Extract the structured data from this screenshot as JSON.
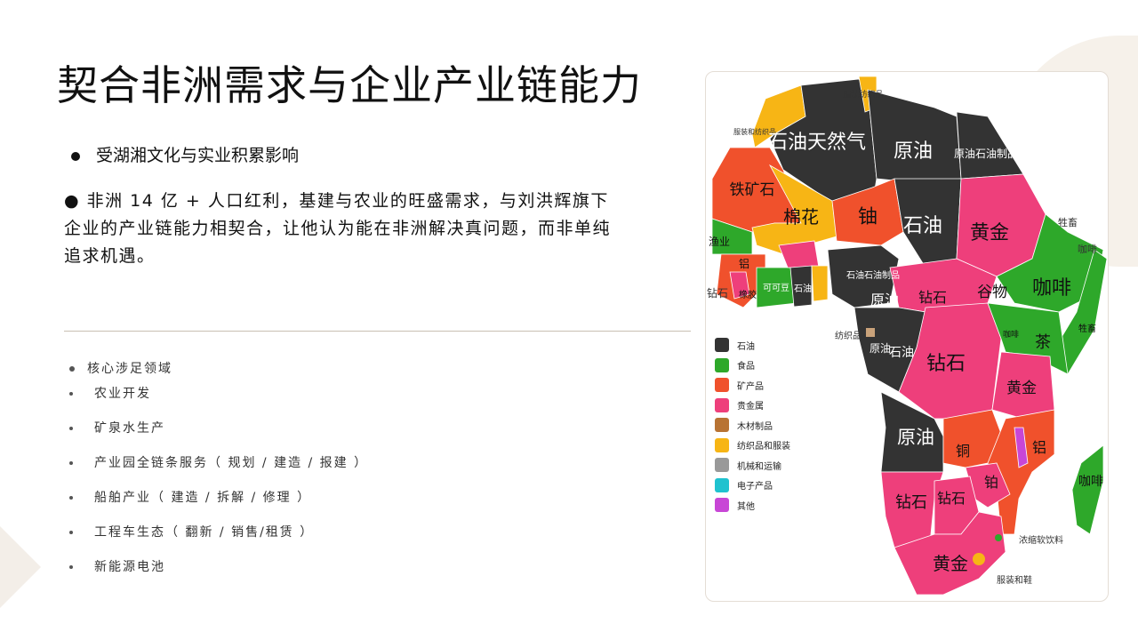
{
  "title": "契合非洲需求与企业产业链能力",
  "bullet1": "受湖湘文化与实业积累影响",
  "paragraph": "● 非洲 14 亿 + 人口红利，基建与农业的旺盛需求，与刘洪辉旗下企业的产业链能力相契合，让他认为能在非洲解决真问题，而非单纯追求机遇。",
  "core": {
    "heading": "核心涉足领域",
    "items": [
      "农业开发",
      "矿泉水生产",
      "产业园全链条服务（ 规划 / 建造 / 报建 ）",
      "船舶产业（ 建造 / 拆解 / 修理 ）",
      "工程车生态（ 翻新 / 销售/租赁 ）",
      "新能源电池"
    ]
  },
  "map": {
    "legend": [
      {
        "label": "石油",
        "color": "#333333"
      },
      {
        "label": "食品",
        "color": "#2ea82a"
      },
      {
        "label": "矿产品",
        "color": "#f0512c"
      },
      {
        "label": "贵金属",
        "color": "#ee3f7b"
      },
      {
        "label": "木材制品",
        "color": "#b87333"
      },
      {
        "label": "纺织品和服装",
        "color": "#f7b515"
      },
      {
        "label": "机械和运输",
        "color": "#999999"
      },
      {
        "label": "电子产品",
        "color": "#1fc2cf"
      },
      {
        "label": "其他",
        "color": "#c846d6"
      }
    ],
    "labels": [
      "服装和纺织品",
      "服装纺织品",
      "石油天然气",
      "原油",
      "原油石油制品",
      "铁矿石",
      "棉花",
      "铀",
      "石油",
      "黄金",
      "牲畜",
      "咖啡",
      "渔业",
      "铝",
      "钻石",
      "橡胶",
      "可可豆",
      "石油",
      "石油石油制品",
      "原油",
      "钻石",
      "谷物",
      "咖啡",
      "牲畜",
      "纺织品",
      "原油",
      "石油",
      "钻石",
      "咖啡",
      "茶",
      "黄金",
      "原油",
      "铜",
      "铝",
      "钻石",
      "钻石",
      "铂",
      "咖啡",
      "浓缩软饮料",
      "黄金",
      "服装和鞋"
    ]
  }
}
